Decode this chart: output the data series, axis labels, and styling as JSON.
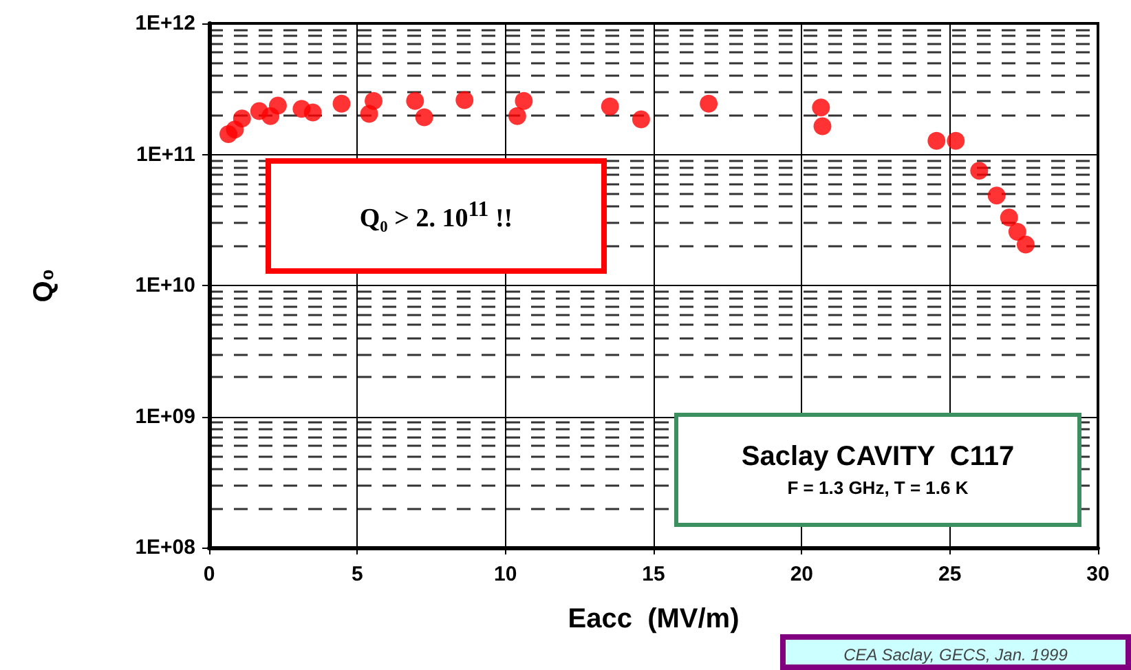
{
  "chart_data": {
    "type": "scatter",
    "xlabel": "Eacc  (MV/m)",
    "ylabel": "Q₀",
    "x": [
      0.65,
      0.87,
      1.11,
      1.69,
      2.07,
      2.32,
      3.12,
      3.5,
      4.47,
      5.4,
      5.55,
      6.95,
      7.26,
      8.62,
      10.4,
      10.62,
      13.53,
      14.58,
      16.86,
      20.65,
      20.7,
      24.55,
      25.2,
      25.99,
      26.58,
      27.0,
      27.28,
      27.56
    ],
    "series": [
      {
        "color": "#ff0000",
        "values": [
          143000000000.0,
          155000000000.0,
          188000000000.0,
          214000000000.0,
          196000000000.0,
          236000000000.0,
          223000000000.0,
          209000000000.0,
          244000000000.0,
          204000000000.0,
          256000000000.0,
          256000000000.0,
          192000000000.0,
          260000000000.0,
          196000000000.0,
          256000000000.0,
          232000000000.0,
          185000000000.0,
          244000000000.0,
          228000000000.0,
          164000000000.0,
          127000000000.0,
          127000000000.0,
          75000000000.0,
          48600000000.0,
          33000000000.0,
          25700000000.0,
          20500000000.0
        ]
      }
    ],
    "xlim": [
      0,
      30
    ],
    "xticks": [
      0,
      5,
      10,
      15,
      20,
      25,
      30
    ],
    "ylim": [
      100000000.0,
      1000000000000.0
    ],
    "yticks": [
      {
        "value": 100000000.0,
        "label": "1E+08"
      },
      {
        "value": 1000000000.0,
        "label": "1E+09"
      },
      {
        "value": 10000000000.0,
        "label": "1E+10"
      },
      {
        "value": 100000000000.0,
        "label": "1E+11"
      },
      {
        "value": 1000000000000.0,
        "label": "1E+12"
      }
    ],
    "log": "y",
    "grid": true,
    "marker": "circle",
    "annotations": [
      "Q₀ > 2. 10$^{11}$ !!",
      "Saclay CAVITY  C117",
      "F = 1.3 GHz, T = 1.6 K",
      "CEA Saclay, GECS, Jan. 1999"
    ]
  }
}
